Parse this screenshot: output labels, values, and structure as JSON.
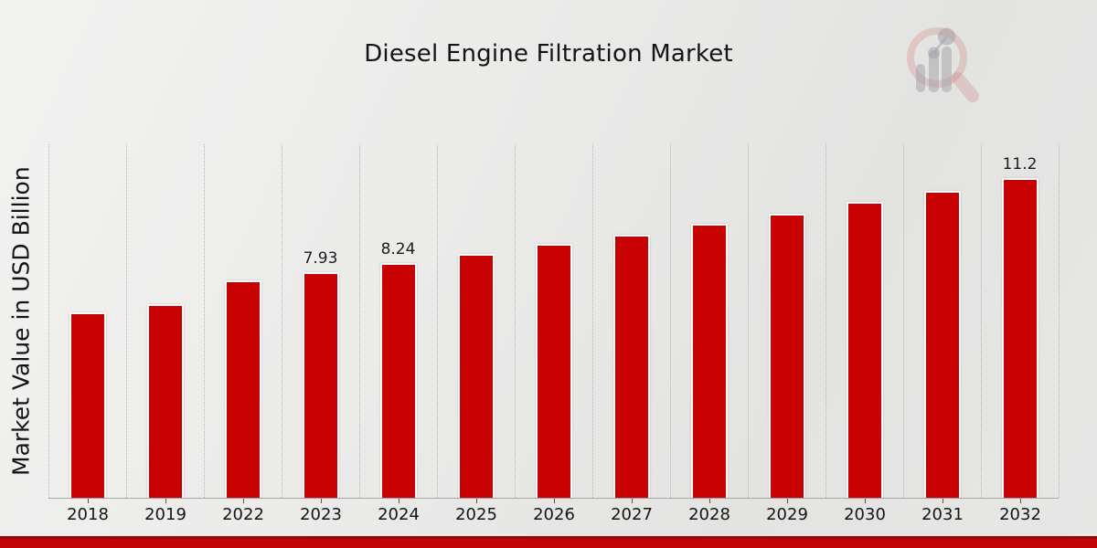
{
  "title": "Diesel Engine Filtration Market",
  "ylabel": "Market Value in USD Billion",
  "chart_data": {
    "type": "bar",
    "title": "Diesel Engine Filtration Market",
    "xlabel": "",
    "ylabel": "Market Value in USD Billion",
    "categories": [
      "2018",
      "2019",
      "2022",
      "2023",
      "2024",
      "2025",
      "2026",
      "2027",
      "2028",
      "2029",
      "2030",
      "2031",
      "2032"
    ],
    "values": [
      6.5,
      6.8,
      7.63,
      7.93,
      8.24,
      8.56,
      8.9,
      9.24,
      9.6,
      9.98,
      10.37,
      10.77,
      11.2
    ],
    "bar_labels": {
      "2023": "7.93",
      "2024": "8.24",
      "2032": "11.2"
    },
    "ylim": [
      0,
      12.4
    ],
    "y_tick_labels": [],
    "grid": "vertical dotted gridlines between categories, no horizontal gridlines",
    "legend_position": "none",
    "bar_color": "#c80202",
    "bar_edge_color": "#fbfbfb",
    "axis_line_color": "#a9a9a9"
  },
  "branding": {
    "logo_icon": "magnifier-bar-chart-watermark",
    "logo_circle_color": "#cd7a7a",
    "logo_bars_color": "#a4a4ab"
  },
  "footer": {
    "accent_bar_dark": "#8f0a0a",
    "accent_bar_red": "#c40505"
  }
}
